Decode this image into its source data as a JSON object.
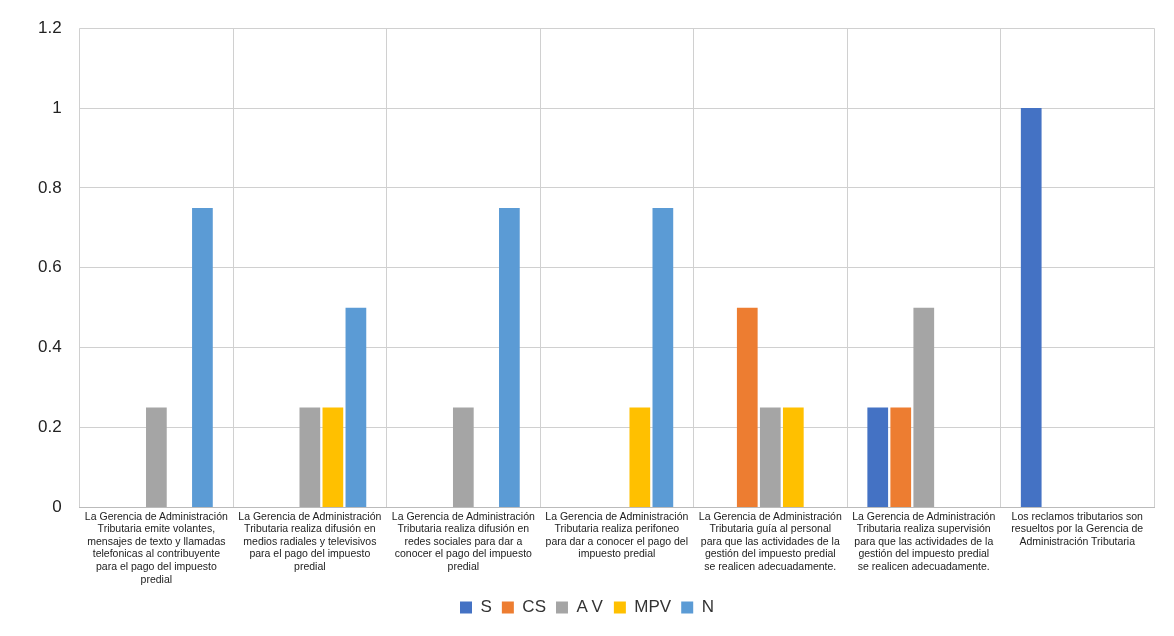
{
  "chart_data": {
    "type": "bar",
    "categories": [
      "La Gerencia de Administración Tributaria emite volantes, mensajes de texto y llamadas telefonicas al contribuyente para el pago del impuesto predial",
      "La Gerencia de Administración Tributaria realiza difusión en medios radiales y televisivos para el pago del impuesto predial",
      "La Gerencia de Administración Tributaria realiza difusión en redes sociales para dar a conocer el pago del impuesto predial",
      "La Gerencia de Administración Tributaria realiza perifoneo para dar a conocer el pago del impuesto predial",
      "La Gerencia de Administración Tributaria guía al personal para que las actividades de la gestión del impuesto predial se realicen adecuadamente.",
      "La Gerencia de Administración Tributaria realiza supervisión para que las actividades de la gestión del impuesto predial se realicen adecuadamente.",
      "Los reclamos tributarios son resueltos por la Gerencia de Administración Tributaria"
    ],
    "series": [
      {
        "name": "S",
        "color": "#4472c4",
        "values": [
          0,
          0,
          0,
          0,
          0,
          0.25,
          1
        ]
      },
      {
        "name": "CS",
        "color": "#ed7d31",
        "values": [
          0,
          0,
          0,
          0,
          0.5,
          0.25,
          0
        ]
      },
      {
        "name": "A V",
        "color": "#a5a5a5",
        "values": [
          0.25,
          0.25,
          0.25,
          0,
          0.25,
          0.5,
          0
        ]
      },
      {
        "name": "MPV",
        "color": "#ffc000",
        "values": [
          0,
          0.25,
          0,
          0.25,
          0.25,
          0,
          0
        ]
      },
      {
        "name": "N",
        "color": "#5b9bd5",
        "values": [
          0.75,
          0.5,
          0.75,
          0.75,
          0,
          0,
          0
        ]
      }
    ],
    "ylim": [
      0,
      1.2
    ],
    "yticks": [
      0,
      0.2,
      0.4,
      0.6,
      0.8,
      1,
      1.2
    ],
    "grid": true,
    "legend": "bottom"
  }
}
